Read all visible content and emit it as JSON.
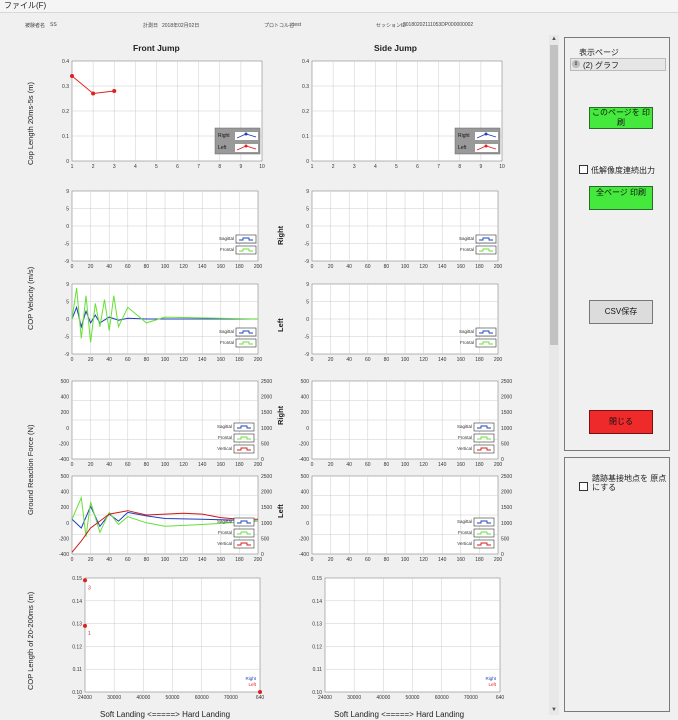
{
  "menu": {
    "file": "ファイル(F)"
  },
  "info": {
    "subject_label": "被験者名",
    "subject_value": "SS",
    "date_label": "計測日",
    "date_value": "2018年02月02日",
    "protocol_label": "プロトコル名",
    "protocol_value": "test",
    "session_label": "セッションID",
    "session_value": "20180202111053DP000000002"
  },
  "titles": {
    "front": "Front Jump",
    "side": "Side Jump"
  },
  "ylabels": {
    "cop_length": "Cop Length 20ms-5s (m)",
    "cop_velocity": "COP Velocity (m/s)",
    "grf": "Ground Reaction Force (N)",
    "cop_20_200": "COP Length of 20-200ms (m)"
  },
  "side_labels": {
    "right": "Right",
    "left": "Left"
  },
  "xlabel": "Soft Landing <=====> Hard Landing",
  "legend": {
    "right": "Right",
    "left": "Left",
    "sagittal": "Sagittal",
    "frontal": "Frontal",
    "vertical": "Vertical"
  },
  "panel": {
    "page_label": "表示ページ",
    "page_value": "(2) グラフ",
    "print_page": "このページを 印刷",
    "low_res": "低解像度連続出力",
    "all_pages": "全ページ 印刷",
    "csv": "CSV保存",
    "close": "閉じる",
    "origin": "踏跡基接地点を 原点にする"
  },
  "colors": {
    "right_marker": "#2040c0",
    "left_marker": "#e02020",
    "sagittal": "#1a3fbf",
    "frontal": "#66e033",
    "vertical": "#d01818",
    "button_green": "#45e83c",
    "button_red": "#ee2a2a"
  },
  "chart_data": [
    {
      "type": "line",
      "title": "Front Jump",
      "ylabel": "Cop Length 20ms-5s (m)",
      "x": [
        1,
        2,
        3
      ],
      "series": [
        {
          "name": "Left",
          "values": [
            0.34,
            0.27,
            0.28
          ]
        }
      ],
      "xlim": [
        1,
        10
      ],
      "ylim": [
        0,
        0.4
      ],
      "xticks": [
        "1",
        "2",
        "3",
        "4",
        "5",
        "6",
        "7",
        "8",
        "9",
        "10"
      ],
      "yticks": [
        "0",
        "0.1",
        "0.2",
        "0.3",
        "0.4"
      ]
    },
    {
      "type": "line",
      "title": "Side Jump",
      "x": [],
      "series": [],
      "xlim": [
        1,
        10
      ],
      "ylim": [
        0,
        0.4
      ],
      "xticks": [
        "1",
        "2",
        "3",
        "4",
        "5",
        "6",
        "7",
        "8",
        "9",
        "10"
      ],
      "yticks": [
        "0",
        "0.1",
        "0.2",
        "0.3",
        "0.4"
      ]
    },
    {
      "type": "line",
      "ylabel": "COP Velocity (m/s)",
      "note": "Front Right - empty",
      "xlim": [
        0,
        200
      ],
      "ylim": [
        -9,
        9
      ],
      "xticks": [
        "0",
        "20",
        "40",
        "60",
        "80",
        "100",
        "120",
        "140",
        "160",
        "180",
        "200"
      ],
      "yticks": [
        "-9",
        "-5",
        "0",
        "5",
        "9"
      ],
      "series": []
    },
    {
      "type": "line",
      "note": "Side Right - empty",
      "xlim": [
        0,
        200
      ],
      "ylim": [
        -9,
        9
      ],
      "xticks": [
        "0",
        "20",
        "40",
        "60",
        "80",
        "100",
        "120",
        "140",
        "160",
        "180",
        "200"
      ],
      "yticks": [
        "-9",
        "-5",
        "0",
        "5",
        "9"
      ],
      "series": []
    },
    {
      "type": "line",
      "note": "Front Left",
      "xlim": [
        0,
        200
      ],
      "ylim": [
        -9,
        9
      ],
      "xticks": [
        "0",
        "20",
        "40",
        "60",
        "80",
        "100",
        "120",
        "140",
        "160",
        "180",
        "200"
      ],
      "yticks": [
        "-9",
        "-5",
        "0",
        "5",
        "9"
      ],
      "series": [
        {
          "name": "Sagittal",
          "x": [
            0,
            5,
            10,
            15,
            20,
            25,
            30,
            40,
            50,
            60,
            80,
            100,
            200
          ],
          "values": [
            0,
            3,
            -2,
            2,
            -1,
            1,
            -1,
            0.5,
            -0.3,
            0.2,
            0,
            0,
            0
          ]
        },
        {
          "name": "Frontal",
          "x": [
            0,
            5,
            10,
            15,
            20,
            25,
            30,
            35,
            40,
            45,
            50,
            60,
            80,
            100,
            200
          ],
          "values": [
            0,
            8,
            -5,
            6,
            -6,
            4,
            -2,
            5,
            -3,
            6,
            -2,
            3,
            -1,
            0.5,
            0
          ]
        }
      ]
    },
    {
      "type": "line",
      "note": "Side Left - empty",
      "xlim": [
        0,
        200
      ],
      "ylim": [
        -9,
        9
      ],
      "xticks": [
        "0",
        "20",
        "40",
        "60",
        "80",
        "100",
        "120",
        "140",
        "160",
        "180",
        "200"
      ],
      "yticks": [
        "-9",
        "-5",
        "0",
        "5",
        "9"
      ],
      "series": []
    },
    {
      "type": "line",
      "ylabel": "Ground Reaction Force (N)",
      "note": "Front Right - empty",
      "xlim": [
        0,
        200
      ],
      "ylim": [
        -400,
        500
      ],
      "y2lim": [
        0,
        2500
      ],
      "xticks": [
        "0",
        "20",
        "40",
        "60",
        "80",
        "100",
        "120",
        "140",
        "160",
        "180",
        "200"
      ],
      "yticks": [
        "-400",
        "-200",
        "0",
        "200",
        "400",
        "500"
      ],
      "y2ticks": [
        "0",
        "500",
        "1000",
        "1500",
        "2000",
        "2500"
      ],
      "series": []
    },
    {
      "type": "line",
      "note": "Side Right - empty",
      "xlim": [
        0,
        200
      ],
      "ylim": [
        -400,
        500
      ],
      "y2lim": [
        0,
        2500
      ],
      "xticks": [
        "0",
        "20",
        "40",
        "60",
        "80",
        "100",
        "120",
        "140",
        "160",
        "180",
        "200"
      ],
      "yticks": [
        "-400",
        "-200",
        "0",
        "200",
        "400",
        "500"
      ],
      "y2ticks": [
        "0",
        "500",
        "1000",
        "1500",
        "2000",
        "2500"
      ],
      "series": []
    },
    {
      "type": "line",
      "note": "Front Left",
      "xlim": [
        0,
        200
      ],
      "ylim": [
        -400,
        500
      ],
      "y2lim": [
        0,
        2500
      ],
      "xticks": [
        "0",
        "20",
        "40",
        "60",
        "80",
        "100",
        "120",
        "140",
        "160",
        "180",
        "200"
      ],
      "yticks": [
        "-400",
        "-200",
        "0",
        "200",
        "400",
        "500"
      ],
      "y2ticks": [
        "0",
        "500",
        "1000",
        "1500",
        "2000",
        "2500"
      ],
      "series": [
        {
          "name": "Sagittal",
          "x": [
            0,
            10,
            20,
            30,
            40,
            50,
            60,
            80,
            100,
            140,
            180,
            200
          ],
          "values": [
            0,
            -100,
            150,
            -80,
            60,
            -20,
            80,
            40,
            10,
            0,
            -10,
            -20
          ]
        },
        {
          "name": "Frontal",
          "x": [
            0,
            10,
            15,
            20,
            30,
            40,
            50,
            60,
            80,
            100,
            140,
            200
          ],
          "values": [
            0,
            250,
            -200,
            200,
            -150,
            80,
            -60,
            30,
            -40,
            -80,
            -60,
            -20
          ]
        },
        {
          "name": "Vertical",
          "x": [
            0,
            10,
            20,
            30,
            40,
            60,
            80,
            100,
            120,
            140,
            160,
            180,
            200
          ],
          "values": [
            -380,
            -250,
            -100,
            -20,
            60,
            100,
            50,
            60,
            70,
            60,
            20,
            0,
            0
          ]
        }
      ]
    },
    {
      "type": "line",
      "note": "Side Left - empty",
      "xlim": [
        0,
        200
      ],
      "ylim": [
        -400,
        500
      ],
      "y2lim": [
        0,
        2500
      ],
      "xticks": [
        "0",
        "20",
        "40",
        "60",
        "80",
        "100",
        "120",
        "140",
        "160",
        "180",
        "200"
      ],
      "yticks": [
        "-400",
        "-200",
        "0",
        "200",
        "400",
        "500"
      ],
      "y2ticks": [
        "0",
        "500",
        "1000",
        "1500",
        "2000",
        "2500"
      ],
      "series": []
    },
    {
      "type": "scatter",
      "ylabel": "COP Length of 20-200ms (m)",
      "xlabel": "Soft Landing <=====> Hard Landing",
      "xlim": [
        24000,
        640
      ],
      "ylim": [
        0.1,
        0.15
      ],
      "xticks": [
        "24000",
        "30000",
        "40000",
        "50000",
        "60000",
        "70000",
        "640"
      ],
      "yticks": [
        "0.10",
        "0.11",
        "0.12",
        "0.13",
        "0.14",
        "0.15"
      ],
      "series": [
        {
          "name": "Left",
          "points": [
            {
              "x": 24000,
              "y": 0.149,
              "label": "3"
            },
            {
              "x": 24000,
              "y": 0.129,
              "label": "1"
            },
            {
              "x": 640,
              "y": 0.1
            }
          ]
        }
      ]
    },
    {
      "type": "scatter",
      "xlabel": "Soft Landing <=====> Hard Landing",
      "xlim": [
        24000,
        640
      ],
      "ylim": [
        0.1,
        0.15
      ],
      "xticks": [
        "24000",
        "30000",
        "40000",
        "50000",
        "60000",
        "70000",
        "640"
      ],
      "yticks": [
        "0.10",
        "0.11",
        "0.12",
        "0.13",
        "0.14",
        "0.15"
      ],
      "series": []
    }
  ]
}
